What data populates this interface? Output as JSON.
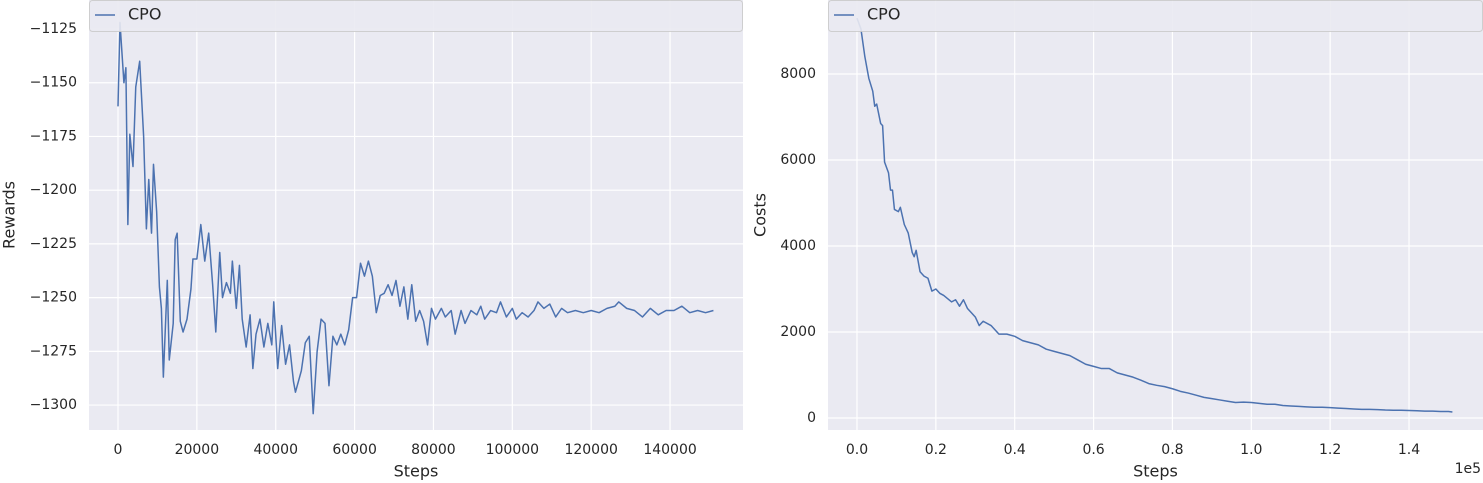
{
  "chart_data": [
    {
      "type": "line",
      "xlabel": "Steps",
      "ylabel": "Rewards",
      "legend": "upper left",
      "grid": true,
      "xlim": [
        -7355,
        158500
      ],
      "ylim": [
        -1311.6,
        -1111.5
      ],
      "xticks": [
        0,
        20000,
        40000,
        60000,
        80000,
        100000,
        120000,
        140000
      ],
      "yticks": [
        {
          "value": -1125,
          "label": "−1125"
        },
        {
          "value": -1150,
          "label": "−1150"
        },
        {
          "value": -1175,
          "label": "−1175"
        },
        {
          "value": -1200,
          "label": "−1200"
        },
        {
          "value": -1225,
          "label": "−1225"
        },
        {
          "value": -1250,
          "label": "−1250"
        },
        {
          "value": -1275,
          "label": "−1275"
        },
        {
          "value": -1300,
          "label": "−1300"
        }
      ],
      "x": [
        0,
        500,
        1500,
        2000,
        2500,
        3000,
        3800,
        4500,
        5500,
        6500,
        7200,
        7800,
        8500,
        9000,
        9800,
        10500,
        11000,
        11500,
        12500,
        13000,
        14000,
        14500,
        15000,
        15800,
        16500,
        17500,
        18500,
        19000,
        20000,
        21000,
        22000,
        23000,
        24000,
        24800,
        25800,
        26500,
        27500,
        28500,
        29000,
        30000,
        30800,
        31500,
        32500,
        33500,
        34200,
        35000,
        36000,
        37000,
        38000,
        39000,
        39500,
        40500,
        41500,
        42500,
        43500,
        44500,
        45000,
        46500,
        47500,
        48500,
        49500,
        50500,
        51500,
        52500,
        53500,
        54500,
        55500,
        56500,
        57500,
        58500,
        59500,
        60500,
        61500,
        62500,
        63500,
        64500,
        65500,
        66500,
        67500,
        68500,
        69500,
        70500,
        71500,
        72500,
        73500,
        74500,
        75500,
        76500,
        77500,
        78500,
        79500,
        80500,
        82000,
        83000,
        84500,
        85500,
        87000,
        88000,
        89500,
        91000,
        92000,
        93000,
        94500,
        96000,
        97000,
        98500,
        100000,
        101000,
        102500,
        104000,
        105500,
        106500,
        108000,
        109500,
        111000,
        112500,
        114000,
        116000,
        118000,
        120000,
        122000,
        124000,
        126000,
        127000,
        129000,
        131000,
        133000,
        135000,
        137000,
        139000,
        141000,
        143000,
        145000,
        147000,
        149000,
        151000
      ],
      "series": [
        {
          "name": "CPO",
          "color": "#4c72b0",
          "values": [
            -1161,
            -1122,
            -1150,
            -1143,
            -1216,
            -1174,
            -1189,
            -1152,
            -1140,
            -1175,
            -1218,
            -1195,
            -1220,
            -1188,
            -1210,
            -1245,
            -1255,
            -1287,
            -1242,
            -1279,
            -1262,
            -1223,
            -1220,
            -1261,
            -1266,
            -1260,
            -1246,
            -1232,
            -1232,
            -1216,
            -1233,
            -1220,
            -1244,
            -1266,
            -1229,
            -1250,
            -1243,
            -1248,
            -1233,
            -1255,
            -1235,
            -1260,
            -1273,
            -1258,
            -1283,
            -1267,
            -1260,
            -1273,
            -1262,
            -1272,
            -1252,
            -1283,
            -1263,
            -1281,
            -1272,
            -1289,
            -1294,
            -1284,
            -1271,
            -1268,
            -1304,
            -1275,
            -1260,
            -1262,
            -1291,
            -1268,
            -1272,
            -1267,
            -1272,
            -1265,
            -1250,
            -1250,
            -1234,
            -1240,
            -1233,
            -1240,
            -1257,
            -1249,
            -1248,
            -1244,
            -1249,
            -1242,
            -1254,
            -1245,
            -1260,
            -1244,
            -1261,
            -1256,
            -1261,
            -1272,
            -1255,
            -1260,
            -1255,
            -1259,
            -1256,
            -1267,
            -1256,
            -1262,
            -1256,
            -1258,
            -1254,
            -1260,
            -1256,
            -1257,
            -1252,
            -1259,
            -1255,
            -1260,
            -1257,
            -1259,
            -1256,
            -1252,
            -1255,
            -1253,
            -1259,
            -1255,
            -1257,
            -1256,
            -1257,
            -1256,
            -1257,
            -1255,
            -1254,
            -1252,
            -1255,
            -1256,
            -1259,
            -1255,
            -1258,
            -1256,
            -1256,
            -1254,
            -1257,
            -1256,
            -1257,
            -1256
          ]
        }
      ]
    },
    {
      "type": "line",
      "xlabel": "Steps",
      "ylabel": "Costs",
      "x_offset_label": "1e5",
      "legend": "upper left",
      "grid": true,
      "xlim": [
        -0.0735,
        1.5876
      ],
      "ylim": [
        -279,
        9721
      ],
      "xticks": [
        {
          "value": 0,
          "label": "0.0"
        },
        0.2,
        0.4,
        0.6,
        0.8,
        {
          "value": 1,
          "label": "1.0"
        },
        1.2,
        1.4
      ],
      "yticks": [
        0,
        2000,
        4000,
        6000,
        8000
      ],
      "x": [
        0,
        0.01,
        0.02,
        0.03,
        0.04,
        0.045,
        0.05,
        0.06,
        0.065,
        0.07,
        0.08,
        0.085,
        0.09,
        0.095,
        0.105,
        0.11,
        0.12,
        0.13,
        0.14,
        0.145,
        0.15,
        0.16,
        0.17,
        0.18,
        0.19,
        0.2,
        0.21,
        0.22,
        0.24,
        0.25,
        0.26,
        0.27,
        0.28,
        0.3,
        0.31,
        0.32,
        0.34,
        0.36,
        0.38,
        0.4,
        0.42,
        0.44,
        0.46,
        0.48,
        0.5,
        0.52,
        0.54,
        0.56,
        0.58,
        0.6,
        0.62,
        0.64,
        0.66,
        0.68,
        0.7,
        0.72,
        0.74,
        0.76,
        0.78,
        0.8,
        0.82,
        0.84,
        0.86,
        0.88,
        0.9,
        0.92,
        0.94,
        0.96,
        0.98,
        1,
        1.02,
        1.04,
        1.06,
        1.08,
        1.1,
        1.12,
        1.14,
        1.16,
        1.18,
        1.2,
        1.22,
        1.24,
        1.26,
        1.28,
        1.3,
        1.32,
        1.34,
        1.36,
        1.38,
        1.4,
        1.42,
        1.44,
        1.46,
        1.48,
        1.5,
        1.51
      ],
      "series": [
        {
          "name": "CPO",
          "color": "#4c72b0",
          "values": [
            9300,
            9050,
            8400,
            7900,
            7600,
            7250,
            7300,
            6850,
            6800,
            5950,
            5700,
            5300,
            5300,
            4850,
            4800,
            4900,
            4500,
            4300,
            3850,
            3750,
            3900,
            3400,
            3300,
            3250,
            2950,
            3000,
            2900,
            2850,
            2700,
            2750,
            2600,
            2750,
            2550,
            2350,
            2150,
            2250,
            2150,
            1950,
            1950,
            1900,
            1800,
            1750,
            1700,
            1600,
            1550,
            1500,
            1450,
            1350,
            1250,
            1200,
            1150,
            1150,
            1050,
            1000,
            950,
            880,
            800,
            760,
            730,
            680,
            620,
            580,
            530,
            480,
            450,
            420,
            390,
            360,
            370,
            360,
            340,
            320,
            320,
            290,
            280,
            270,
            260,
            250,
            250,
            240,
            230,
            220,
            210,
            200,
            200,
            195,
            185,
            180,
            180,
            175,
            170,
            160,
            160,
            150,
            150,
            140
          ]
        }
      ]
    }
  ]
}
